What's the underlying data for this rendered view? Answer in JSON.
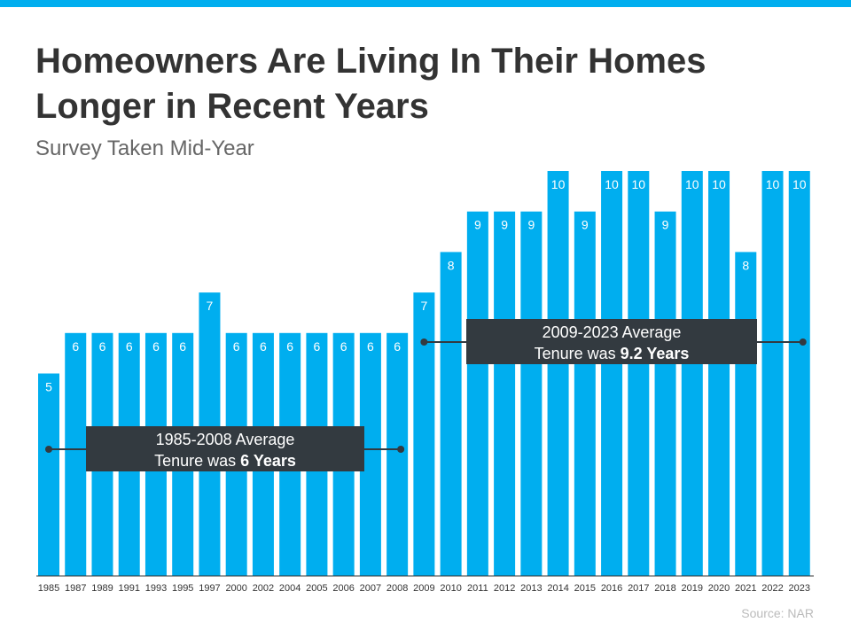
{
  "chart_data": {
    "type": "bar",
    "title": [
      "Homeowners Are Living In Their Homes",
      "Longer in Recent Years"
    ],
    "subtitle": "Survey Taken Mid-Year",
    "source": "Source: NAR",
    "color": "#00aeef",
    "categories": [
      "1985",
      "1987",
      "1989",
      "1991",
      "1993",
      "1995",
      "1997",
      "2000",
      "2002",
      "2004",
      "2005",
      "2006",
      "2007",
      "2008",
      "2009",
      "2010",
      "2011",
      "2012",
      "2013",
      "2014",
      "2015",
      "2016",
      "2017",
      "2018",
      "2019",
      "2020",
      "2021",
      "2022",
      "2023"
    ],
    "values": [
      5,
      6,
      6,
      6,
      6,
      6,
      7,
      6,
      6,
      6,
      6,
      6,
      6,
      6,
      7,
      8,
      9,
      9,
      9,
      10,
      9,
      10,
      10,
      9,
      10,
      10,
      8,
      10,
      10
    ],
    "ylim": [
      0,
      10
    ],
    "annotations": [
      {
        "line1": "1985-2008 Average",
        "line2": "Tenure was",
        "bold": "6 Years"
      },
      {
        "line1": "2009-2023 Average",
        "line2": "Tenure was",
        "bold": "9.2 Years"
      }
    ]
  }
}
